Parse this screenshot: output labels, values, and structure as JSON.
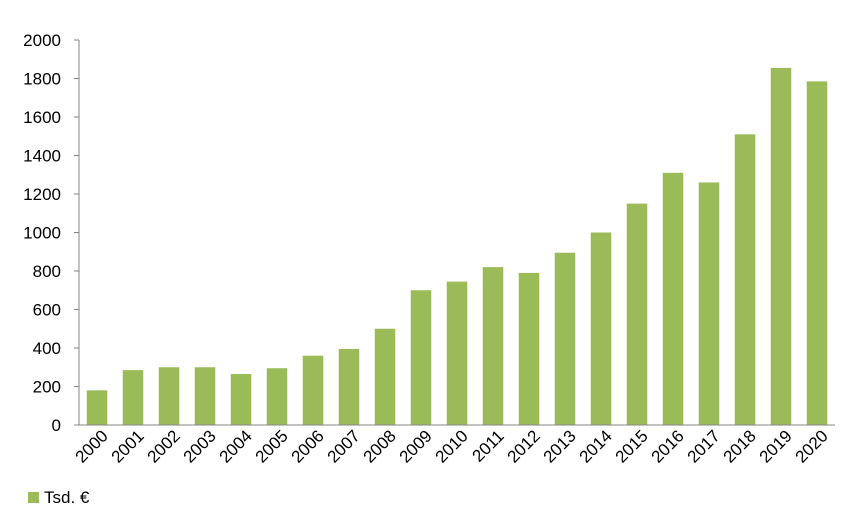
{
  "chart_data": {
    "type": "bar",
    "categories": [
      "2000",
      "2001",
      "2002",
      "2003",
      "2004",
      "2005",
      "2006",
      "2007",
      "2008",
      "2009",
      "2010",
      "2011",
      "2012",
      "2013",
      "2014",
      "2015",
      "2016",
      "2017",
      "2018",
      "2019",
      "2020"
    ],
    "series": [
      {
        "name": "Tsd. €",
        "color": "#9BBB59",
        "values": [
          180,
          285,
          300,
          300,
          265,
          295,
          360,
          395,
          500,
          700,
          745,
          820,
          790,
          895,
          1000,
          1150,
          1310,
          1260,
          1510,
          1855,
          1785
        ]
      }
    ],
    "ylim": [
      0,
      2000
    ],
    "yticks": [
      0,
      200,
      400,
      600,
      800,
      1000,
      1200,
      1400,
      1600,
      1800,
      2000
    ],
    "title": "",
    "xlabel": "",
    "ylabel": "",
    "legend": {
      "position": "bottom-left"
    },
    "grid": false
  }
}
